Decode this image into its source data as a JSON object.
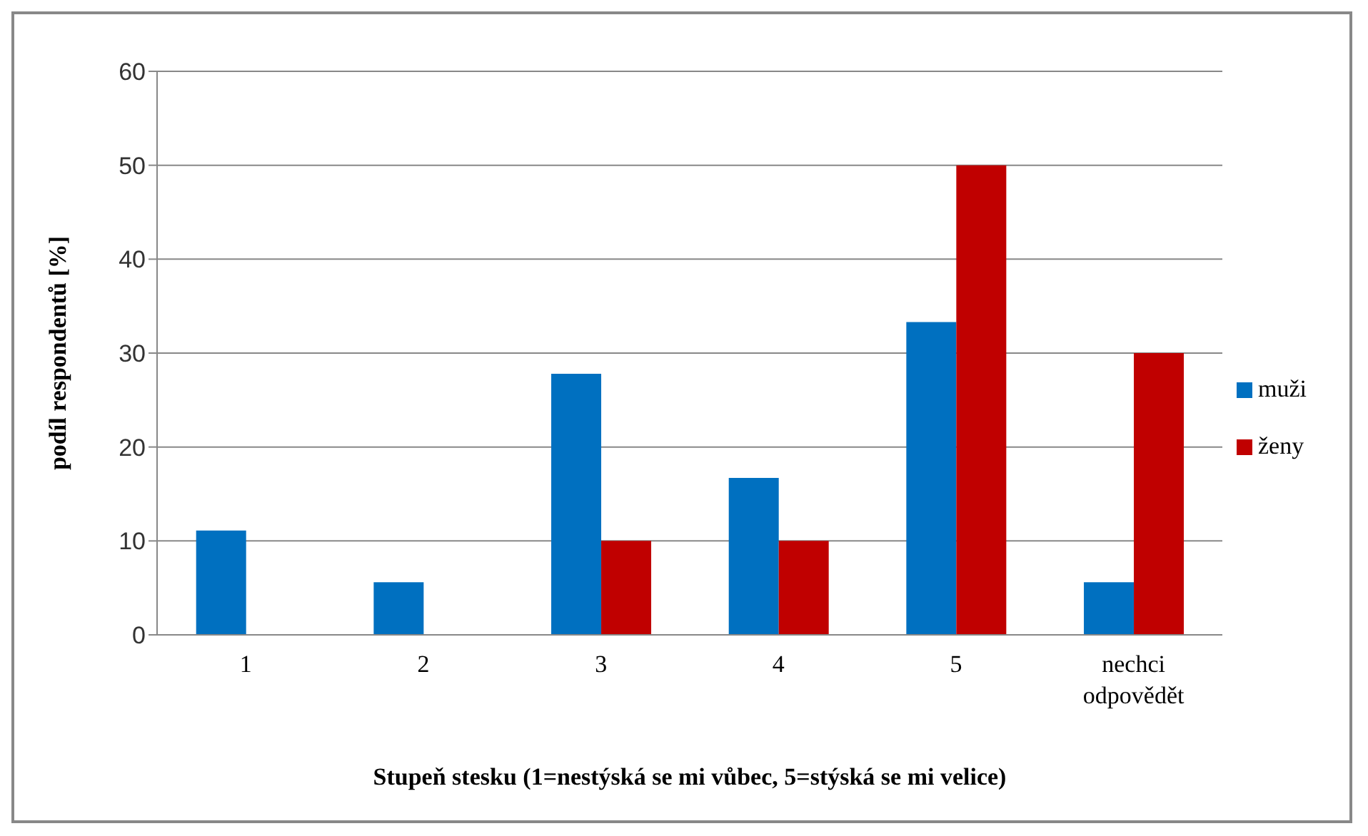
{
  "chart_data": {
    "type": "bar",
    "xlabel": "Stupeň stesku (1=nestýská se mi vůbec, 5=stýská se mi velice)",
    "ylabel": "podíl respondentů [%]",
    "categories": [
      "1",
      "2",
      "3",
      "4",
      "5",
      "nechci odpovědět"
    ],
    "series": [
      {
        "name": "muži",
        "color": "#0070c0",
        "values": [
          11.1,
          5.6,
          27.8,
          16.7,
          33.3,
          5.6
        ]
      },
      {
        "name": "ženy",
        "color": "#c00000",
        "values": [
          0,
          0,
          10,
          10,
          50,
          30
        ]
      }
    ],
    "ylim": [
      0,
      60
    ],
    "yticks": [
      0,
      10,
      20,
      30,
      40,
      50,
      60
    ],
    "grid": "y",
    "legend": "right"
  }
}
